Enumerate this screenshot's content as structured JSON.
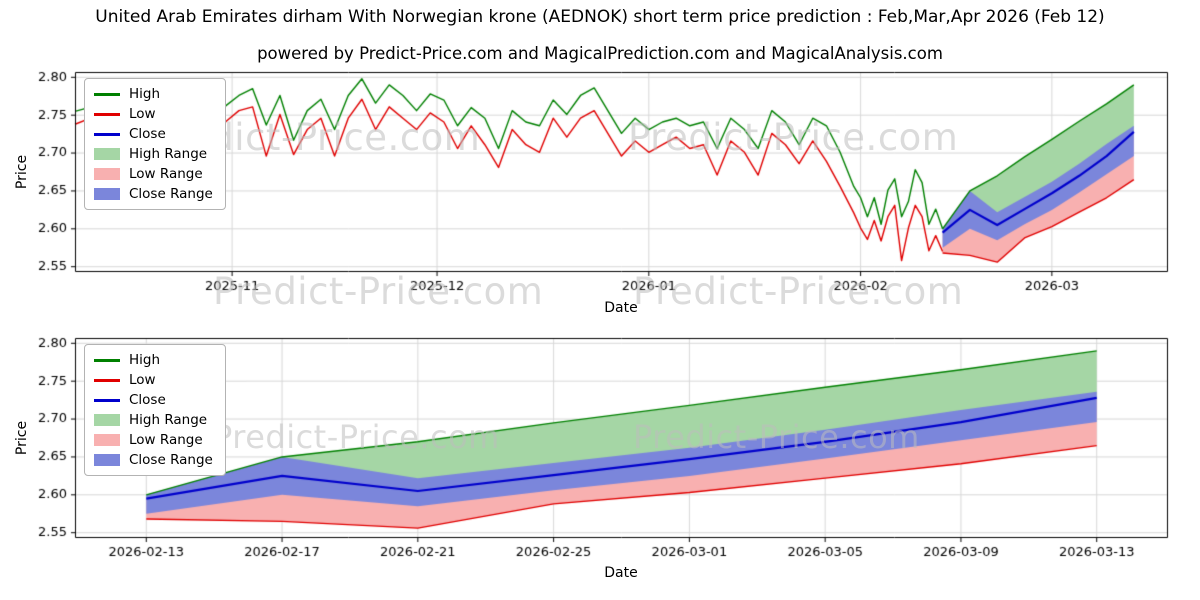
{
  "page": {
    "title": "United Arab Emirates dirham With Norwegian krone (AEDNOK) short term price prediction : Feb,Mar,Apr 2026 (Feb 12)",
    "subtitle": "powered by Predict-Price.com and MagicalPrediction.com and MagicalAnalysis.com",
    "watermark": "Predict-Price.com"
  },
  "colors": {
    "high": "#008000",
    "low": "#e00000",
    "close": "#0000cc",
    "high_range": "#a5d6a5",
    "low_range": "#f8b0b0",
    "close_range": "#7b86db",
    "grid": "#d8d8d8",
    "axis": "#000000"
  },
  "legend": {
    "items": [
      {
        "label": "High"
      },
      {
        "label": "Low"
      },
      {
        "label": "Close"
      },
      {
        "label": "High Range"
      },
      {
        "label": "Low Range"
      },
      {
        "label": "Close Range"
      }
    ]
  },
  "chart_data": [
    {
      "type": "line",
      "name": "price-history-with-prediction",
      "ylabel": "Price",
      "xlabel": "Date",
      "xlim": [
        0,
        160
      ],
      "ylim": [
        2.543,
        2.807
      ],
      "yticks": [
        2.55,
        2.6,
        2.65,
        2.7,
        2.75,
        2.8
      ],
      "xticks": [
        {
          "pos": 23,
          "label": "2025-11"
        },
        {
          "pos": 53,
          "label": "2025-12"
        },
        {
          "pos": 84,
          "label": "2026-01"
        },
        {
          "pos": 115,
          "label": "2026-02"
        },
        {
          "pos": 143,
          "label": "2026-03"
        }
      ],
      "history": {
        "days": [
          0,
          2,
          4,
          6,
          8,
          10,
          12,
          14,
          16,
          18,
          20,
          22,
          24,
          26,
          28,
          30,
          32,
          34,
          36,
          38,
          40,
          42,
          44,
          46,
          48,
          50,
          52,
          54,
          56,
          58,
          60,
          62,
          64,
          66,
          68,
          70,
          72,
          74,
          76,
          78,
          80,
          82,
          84,
          86,
          88,
          90,
          92,
          94,
          96,
          98,
          100,
          102,
          104,
          106,
          108,
          110,
          112,
          114,
          115,
          116,
          117,
          118,
          119,
          120,
          121,
          122,
          123,
          124,
          125,
          126,
          127
        ],
        "high": [
          2.755,
          2.76,
          2.735,
          2.75,
          2.72,
          2.715,
          2.745,
          2.762,
          2.74,
          2.756,
          2.745,
          2.762,
          2.776,
          2.785,
          2.737,
          2.776,
          2.717,
          2.756,
          2.771,
          2.731,
          2.776,
          2.798,
          2.766,
          2.79,
          2.776,
          2.756,
          2.778,
          2.77,
          2.736,
          2.76,
          2.746,
          2.706,
          2.756,
          2.741,
          2.736,
          2.77,
          2.751,
          2.776,
          2.786,
          2.756,
          2.726,
          2.746,
          2.731,
          2.741,
          2.746,
          2.736,
          2.741,
          2.706,
          2.746,
          2.731,
          2.706,
          2.756,
          2.741,
          2.711,
          2.746,
          2.736,
          2.701,
          2.656,
          2.641,
          2.616,
          2.641,
          2.606,
          2.651,
          2.666,
          2.616,
          2.636,
          2.678,
          2.661,
          2.606,
          2.626,
          2.6
        ],
        "low": [
          2.738,
          2.745,
          2.716,
          2.731,
          2.701,
          2.696,
          2.721,
          2.746,
          2.716,
          2.731,
          2.721,
          2.741,
          2.756,
          2.761,
          2.696,
          2.751,
          2.698,
          2.731,
          2.746,
          2.696,
          2.746,
          2.771,
          2.731,
          2.761,
          2.746,
          2.731,
          2.753,
          2.741,
          2.706,
          2.736,
          2.711,
          2.681,
          2.731,
          2.711,
          2.701,
          2.746,
          2.721,
          2.746,
          2.756,
          2.726,
          2.696,
          2.716,
          2.701,
          2.711,
          2.721,
          2.706,
          2.711,
          2.671,
          2.716,
          2.701,
          2.671,
          2.726,
          2.711,
          2.686,
          2.716,
          2.689,
          2.656,
          2.621,
          2.601,
          2.586,
          2.611,
          2.584,
          2.616,
          2.631,
          2.558,
          2.601,
          2.631,
          2.616,
          2.571,
          2.591,
          2.57
        ]
      },
      "prediction": {
        "x": [
          127,
          131,
          135,
          139,
          143,
          147,
          151,
          155
        ],
        "close": [
          2.595,
          2.625,
          2.605,
          2.626,
          2.647,
          2.67,
          2.696,
          2.728
        ],
        "high_top": [
          2.6,
          2.65,
          2.67,
          2.695,
          2.718,
          2.742,
          2.765,
          2.79
        ],
        "low_bottom": [
          2.568,
          2.565,
          2.556,
          2.588,
          2.603,
          2.622,
          2.641,
          2.665
        ],
        "close_low": [
          2.575,
          2.6,
          2.585,
          2.606,
          2.625,
          2.648,
          2.672,
          2.696
        ],
        "close_high": [
          2.6,
          2.65,
          2.622,
          2.642,
          2.662,
          2.686,
          2.712,
          2.736
        ]
      }
    },
    {
      "type": "line",
      "name": "prediction-detail",
      "ylabel": "Price",
      "xlabel": "Date",
      "xlim": [
        -2.1,
        30.1
      ],
      "ylim": [
        2.543,
        2.807
      ],
      "yticks": [
        2.55,
        2.6,
        2.65,
        2.7,
        2.75,
        2.8
      ],
      "xticks": [
        {
          "pos": 0,
          "label": "2026-02-13"
        },
        {
          "pos": 4,
          "label": "2026-02-17"
        },
        {
          "pos": 8,
          "label": "2026-02-21"
        },
        {
          "pos": 12,
          "label": "2026-02-25"
        },
        {
          "pos": 16,
          "label": "2026-03-01"
        },
        {
          "pos": 20,
          "label": "2026-03-05"
        },
        {
          "pos": 24,
          "label": "2026-03-09"
        },
        {
          "pos": 28,
          "label": "2026-03-13"
        }
      ],
      "prediction": {
        "x": [
          0,
          4,
          8,
          12,
          16,
          20,
          24,
          28
        ],
        "close": [
          2.595,
          2.625,
          2.605,
          2.626,
          2.647,
          2.67,
          2.696,
          2.728
        ],
        "high_top": [
          2.6,
          2.65,
          2.67,
          2.695,
          2.718,
          2.742,
          2.765,
          2.79
        ],
        "low_bottom": [
          2.568,
          2.565,
          2.556,
          2.588,
          2.603,
          2.622,
          2.641,
          2.665
        ],
        "close_low": [
          2.575,
          2.6,
          2.585,
          2.606,
          2.625,
          2.648,
          2.672,
          2.696
        ],
        "close_high": [
          2.6,
          2.65,
          2.622,
          2.642,
          2.662,
          2.686,
          2.712,
          2.736
        ]
      }
    }
  ]
}
